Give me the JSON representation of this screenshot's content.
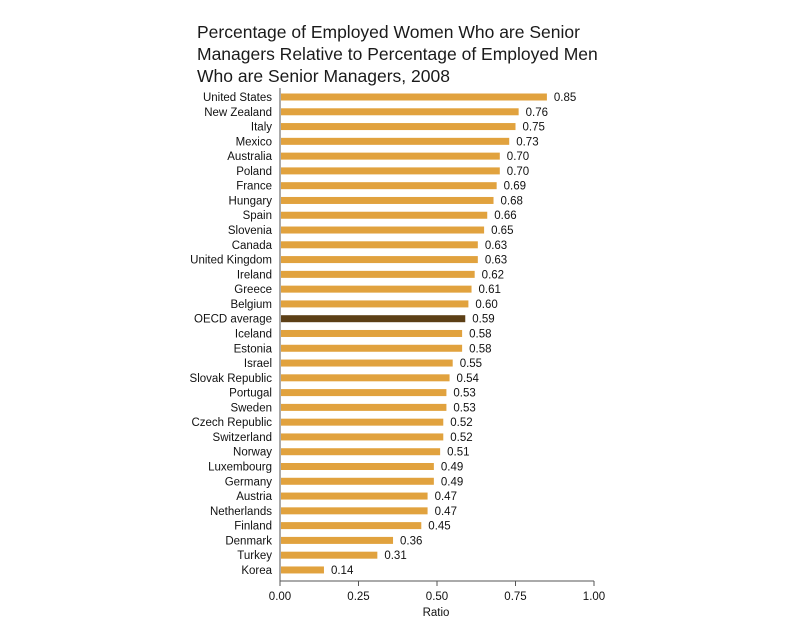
{
  "chart_data": {
    "type": "bar",
    "orientation": "horizontal",
    "title_lines": [
      "Percentage of Employed Women Who are Senior",
      "Managers Relative to Percentage of Employed Men",
      "Who are Senior Managers, 2008"
    ],
    "xlabel": "Ratio",
    "ylabel": "",
    "xlim": [
      0,
      1
    ],
    "x_ticks": [
      "0.00",
      "0.25",
      "0.50",
      "0.75",
      "1.00"
    ],
    "x_tick_values": [
      0,
      0.25,
      0.5,
      0.75,
      1.0
    ],
    "grid": false,
    "legend": "none",
    "bar_color": "#E1A23E",
    "highlight_color": "#5C3F16",
    "highlight_category": "OECD average",
    "categories": [
      "United States",
      "New Zealand",
      "Italy",
      "Mexico",
      "Australia",
      "Poland",
      "France",
      "Hungary",
      "Spain",
      "Slovenia",
      "Canada",
      "United Kingdom",
      "Ireland",
      "Greece",
      "Belgium",
      "OECD average",
      "Iceland",
      "Estonia",
      "Israel",
      "Slovak Republic",
      "Portugal",
      "Sweden",
      "Czech Republic",
      "Switzerland",
      "Norway",
      "Luxembourg",
      "Germany",
      "Austria",
      "Netherlands",
      "Finland",
      "Denmark",
      "Turkey",
      "Korea"
    ],
    "values": [
      0.85,
      0.76,
      0.75,
      0.73,
      0.7,
      0.7,
      0.69,
      0.68,
      0.66,
      0.65,
      0.63,
      0.63,
      0.62,
      0.61,
      0.6,
      0.59,
      0.58,
      0.58,
      0.55,
      0.54,
      0.53,
      0.53,
      0.52,
      0.52,
      0.51,
      0.49,
      0.49,
      0.47,
      0.47,
      0.45,
      0.36,
      0.31,
      0.14
    ],
    "value_labels": [
      "0.85",
      "0.76",
      "0.75",
      "0.73",
      "0.70",
      "0.70",
      "0.69",
      "0.68",
      "0.66",
      "0.65",
      "0.63",
      "0.63",
      "0.62",
      "0.61",
      "0.60",
      "0.59",
      "0.58",
      "0.58",
      "0.55",
      "0.54",
      "0.53",
      "0.53",
      "0.52",
      "0.52",
      "0.51",
      "0.49",
      "0.49",
      "0.47",
      "0.47",
      "0.45",
      "0.36",
      "0.31",
      "0.14"
    ]
  }
}
